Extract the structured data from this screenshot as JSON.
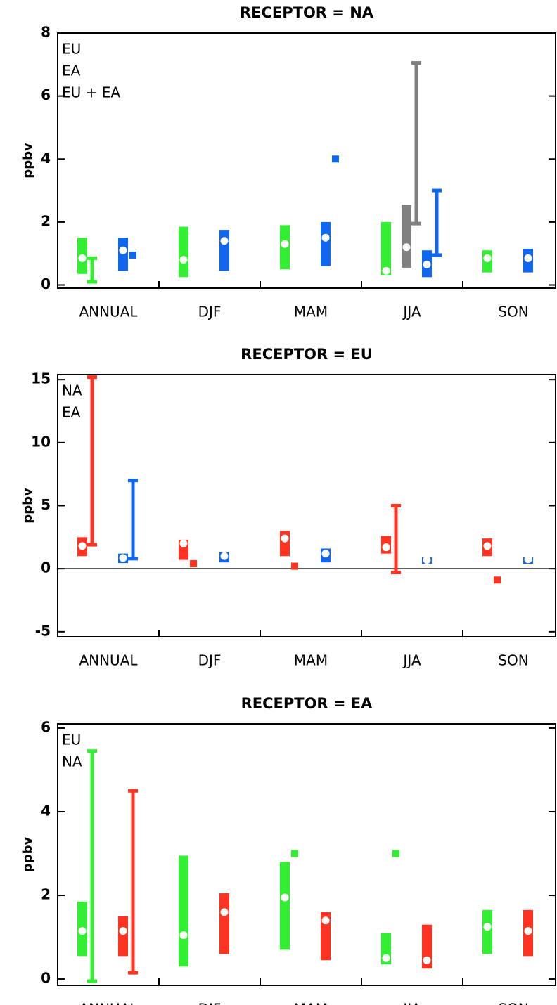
{
  "chart_data": [
    {
      "type": "range",
      "title": "RECEPTOR = NA",
      "y_label": "ppbv",
      "categories": [
        "ANNUAL",
        "DJF",
        "MAM",
        "JJA",
        "SON"
      ],
      "ylim": [
        -0.1,
        8
      ],
      "yticks": [
        0,
        2,
        4,
        6,
        8
      ],
      "zero_line": false,
      "series": [
        {
          "name": "EU",
          "color": "#33ee33",
          "low": [
            0.35,
            0.25,
            0.5,
            0.3,
            0.4
          ],
          "high": [
            1.5,
            1.85,
            1.9,
            2.0,
            1.1
          ],
          "mean": [
            0.85,
            0.8,
            1.3,
            0.45,
            0.85
          ],
          "whisker_low": [
            0.1,
            null,
            null,
            null,
            null
          ],
          "whisker_high": [
            0.85,
            null,
            null,
            null,
            null
          ],
          "point": [
            null,
            null,
            null,
            null,
            null
          ]
        },
        {
          "name": "EU + EA",
          "color": "#808080",
          "low": [
            null,
            null,
            null,
            0.55,
            null
          ],
          "high": [
            null,
            null,
            null,
            2.55,
            null
          ],
          "mean": [
            null,
            null,
            null,
            1.2,
            null
          ],
          "whisker_low": [
            null,
            null,
            null,
            1.95,
            null
          ],
          "whisker_high": [
            null,
            null,
            null,
            7.05,
            null
          ],
          "point": [
            null,
            null,
            null,
            null,
            null
          ]
        },
        {
          "name": "EA",
          "color": "#1166ee",
          "low": [
            0.45,
            0.45,
            0.6,
            0.25,
            0.4
          ],
          "high": [
            1.5,
            1.75,
            2.0,
            1.1,
            1.15
          ],
          "mean": [
            1.1,
            1.4,
            1.5,
            0.65,
            0.85
          ],
          "whisker_low": [
            null,
            null,
            null,
            0.95,
            null
          ],
          "whisker_high": [
            null,
            null,
            null,
            3.0,
            null
          ],
          "point": [
            0.95,
            null,
            4.0,
            null,
            null
          ]
        }
      ],
      "legend_order": [
        0,
        2,
        1
      ]
    },
    {
      "type": "range",
      "title": "RECEPTOR = EU",
      "y_label": "ppbv",
      "categories": [
        "ANNUAL",
        "DJF",
        "MAM",
        "JJA",
        "SON"
      ],
      "ylim": [
        -5.4,
        15.4
      ],
      "yticks": [
        -5,
        0,
        5,
        10,
        15
      ],
      "zero_line": true,
      "series": [
        {
          "name": "NA",
          "color": "#ff3322",
          "low": [
            1.0,
            0.7,
            1.0,
            1.2,
            1.0
          ],
          "high": [
            2.5,
            2.3,
            3.0,
            2.6,
            2.4
          ],
          "mean": [
            1.8,
            2.0,
            2.4,
            1.7,
            1.8
          ],
          "whisker_low": [
            1.9,
            null,
            null,
            -0.3,
            null
          ],
          "whisker_high": [
            15.2,
            null,
            null,
            5.0,
            null
          ],
          "point": [
            null,
            0.4,
            0.2,
            null,
            -0.9
          ]
        },
        {
          "name": "EA",
          "color": "#1166ee",
          "low": [
            0.45,
            0.5,
            0.5,
            0.4,
            0.4
          ],
          "high": [
            1.2,
            1.3,
            1.6,
            0.9,
            0.9
          ],
          "mean": [
            0.85,
            1.0,
            1.2,
            0.7,
            0.75
          ],
          "whisker_low": [
            0.8,
            null,
            null,
            null,
            null
          ],
          "whisker_high": [
            7.0,
            null,
            null,
            null,
            null
          ],
          "point": [
            null,
            null,
            null,
            null,
            null
          ]
        }
      ],
      "legend_order": [
        0,
        1
      ]
    },
    {
      "type": "range",
      "title": "RECEPTOR = EA",
      "y_label": "ppbv",
      "categories": [
        "ANNUAL",
        "DJF",
        "MAM",
        "JJA",
        "SON"
      ],
      "ylim": [
        -0.15,
        6.1
      ],
      "yticks": [
        0,
        2,
        4,
        6
      ],
      "zero_line": false,
      "series": [
        {
          "name": "EU",
          "color": "#33ee33",
          "low": [
            0.55,
            0.3,
            0.7,
            0.35,
            0.6
          ],
          "high": [
            1.85,
            2.95,
            2.8,
            1.1,
            1.65
          ],
          "mean": [
            1.15,
            1.05,
            1.95,
            0.5,
            1.25
          ],
          "whisker_low": [
            -0.05,
            null,
            null,
            null,
            null
          ],
          "whisker_high": [
            5.45,
            null,
            null,
            null,
            null
          ],
          "point": [
            null,
            null,
            3.0,
            3.0,
            null
          ]
        },
        {
          "name": "NA",
          "color": "#ff3322",
          "low": [
            0.55,
            0.6,
            0.45,
            0.25,
            0.55
          ],
          "high": [
            1.5,
            2.05,
            1.6,
            1.3,
            1.65
          ],
          "mean": [
            1.15,
            1.6,
            1.4,
            0.45,
            1.15
          ],
          "whisker_low": [
            0.15,
            null,
            null,
            null,
            null
          ],
          "whisker_high": [
            4.5,
            null,
            null,
            null,
            null
          ],
          "point": [
            null,
            null,
            null,
            null,
            null
          ]
        }
      ],
      "legend_order": [
        0,
        1
      ]
    }
  ]
}
